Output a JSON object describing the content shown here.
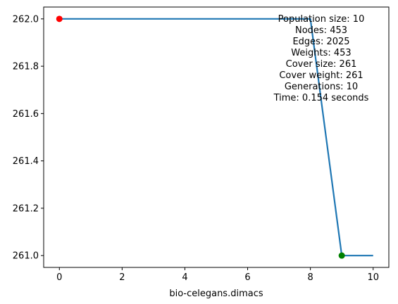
{
  "chart_data": {
    "type": "line",
    "title": "",
    "xlabel": "bio-celegans.dimacs",
    "ylabel": "",
    "xlim": [
      -0.5,
      10.5
    ],
    "ylim": [
      260.95,
      262.05
    ],
    "x_ticks": [
      0,
      2,
      4,
      6,
      8,
      10
    ],
    "y_ticks": [
      261.0,
      261.2,
      261.4,
      261.6,
      261.8,
      262.0
    ],
    "x_tick_labels": [
      "0",
      "2",
      "4",
      "6",
      "8",
      "10"
    ],
    "y_tick_labels": [
      "261.0",
      "261.2",
      "261.4",
      "261.6",
      "261.8",
      "262.0"
    ],
    "grid": false,
    "series": [
      {
        "x": [
          0,
          1,
          2,
          3,
          4,
          5,
          6,
          7,
          8,
          9,
          10
        ],
        "values": [
          262,
          262,
          262,
          262,
          262,
          262,
          262,
          262,
          262,
          261,
          261
        ],
        "color": "#1f77b4"
      }
    ],
    "markers": [
      {
        "x": 0,
        "y": 262,
        "color": "#ff0000"
      },
      {
        "x": 9,
        "y": 261,
        "color": "#008000"
      }
    ],
    "annotations": [
      "Population size: 10",
      "Nodes: 453",
      "Edges: 2025",
      "Weights: 453",
      "Cover size: 261",
      "Cover weight: 261",
      "Generations: 10",
      "Time: 0.154 seconds"
    ]
  }
}
